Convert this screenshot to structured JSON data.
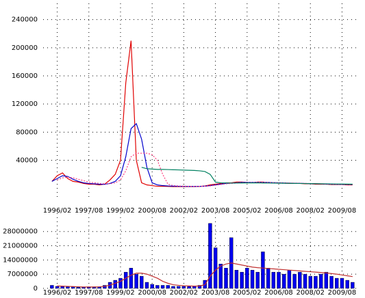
{
  "chart_data": [
    {
      "type": "line",
      "x": [
        "1995/11",
        "1996/02",
        "1996/05",
        "1996/08",
        "1996/11",
        "1997/02",
        "1997/05",
        "1997/08",
        "1997/11",
        "1998/02",
        "1998/05",
        "1998/08",
        "1998/11",
        "1999/02",
        "1999/05",
        "1999/08",
        "1999/11",
        "2000/02",
        "2000/05",
        "2000/08",
        "2000/11",
        "2001/02",
        "2001/05",
        "2001/08",
        "2001/11",
        "2002/02",
        "2002/05",
        "2002/08",
        "2002/11",
        "2003/02",
        "2003/05",
        "2003/08",
        "2003/11",
        "2004/02",
        "2004/05",
        "2004/08",
        "2004/11",
        "2005/02",
        "2005/05",
        "2005/08",
        "2005/11",
        "2006/02",
        "2006/05",
        "2006/08",
        "2006/11",
        "2007/02",
        "2007/05",
        "2007/08",
        "2007/11",
        "2008/02",
        "2008/05",
        "2008/08",
        "2008/11",
        "2009/02",
        "2009/05",
        "2009/08",
        "2009/11",
        "2010/02"
      ],
      "xlim": [
        "1995/06",
        "2010/04"
      ],
      "xticks": [
        "1996/02",
        "1997/08",
        "1999/02",
        "2000/08",
        "2002/02",
        "2003/08",
        "2005/02",
        "2006/08",
        "2008/02",
        "2009/08"
      ],
      "ylim": [
        -12000,
        263000
      ],
      "yticks": [
        40000,
        80000,
        120000,
        160000,
        200000,
        240000
      ],
      "grid": true,
      "series": [
        {
          "color": "#e00000",
          "values": [
            10000,
            18000,
            22000,
            14000,
            10000,
            9000,
            7000,
            6000,
            6000,
            5000,
            6000,
            12000,
            20000,
            40000,
            150000,
            210000,
            40000,
            8000,
            5000,
            4000,
            3000,
            3000,
            2800,
            2600,
            2500,
            2500,
            2500,
            2600,
            2800,
            3500,
            5000,
            6000,
            7000,
            8000,
            8000,
            9000,
            9000,
            8500,
            8000,
            9000,
            9000,
            8000,
            8000,
            7500,
            7500,
            7000,
            7000,
            7000,
            6500,
            6500,
            6000,
            6000,
            6000,
            5500,
            5500,
            5500,
            5000,
            5000
          ]
        },
        {
          "color": "#0000cc",
          "values": [
            10000,
            14000,
            18000,
            17000,
            13000,
            10000,
            8000,
            7000,
            6500,
            6000,
            5800,
            7000,
            10000,
            18000,
            45000,
            85000,
            92000,
            70000,
            30000,
            8000,
            5000,
            4000,
            3500,
            3200,
            3000,
            2900,
            2800,
            2800,
            2900,
            3200,
            4000,
            5000,
            6000,
            7000,
            7500,
            8000,
            8500,
            8500,
            8500,
            8500,
            8500,
            8500,
            8200,
            8000,
            7800,
            7500,
            7300,
            7200,
            7000,
            6800,
            6600,
            6400,
            6200,
            6000,
            5800,
            5700,
            5600,
            5500
          ]
        },
        {
          "color": "#ff4080",
          "values": [
            null,
            12000,
            15000,
            16000,
            15000,
            13000,
            11000,
            9000,
            8000,
            7000,
            6500,
            6500,
            8000,
            12000,
            25000,
            45000,
            50000,
            50000,
            50000,
            48000,
            40000,
            20000,
            6000,
            4000,
            3500,
            3200,
            3000,
            2900,
            2900,
            3000,
            3500,
            4500,
            5500,
            6500,
            7000,
            7500,
            8000,
            8200,
            8400,
            8500,
            8500,
            8500,
            8300,
            8100,
            7900,
            7700,
            7500,
            7300,
            7100,
            6900,
            6700,
            6500,
            6300,
            6100,
            5900,
            5800,
            5700,
            5600
          ]
        },
        {
          "color": "#008060",
          "values": [
            null,
            null,
            null,
            null,
            null,
            null,
            null,
            null,
            null,
            null,
            null,
            null,
            null,
            null,
            null,
            null,
            null,
            30000,
            28000,
            27500,
            27000,
            27000,
            26800,
            26500,
            26300,
            26000,
            25800,
            25500,
            25000,
            24000,
            20000,
            9000,
            8000,
            7800,
            7600,
            7600,
            7700,
            7800,
            7800,
            7800,
            7700,
            7600,
            7500,
            7400,
            7300,
            7200,
            7100,
            7000,
            6900,
            6800,
            6700,
            6600,
            6500,
            6400,
            6300,
            6200,
            6100,
            6000
          ]
        }
      ]
    },
    {
      "type": "bar",
      "x": [
        "1995/11",
        "1996/02",
        "1996/05",
        "1996/08",
        "1996/11",
        "1997/02",
        "1997/05",
        "1997/08",
        "1997/11",
        "1998/02",
        "1998/05",
        "1998/08",
        "1998/11",
        "1999/02",
        "1999/05",
        "1999/08",
        "1999/11",
        "2000/02",
        "2000/05",
        "2000/08",
        "2000/11",
        "2001/02",
        "2001/05",
        "2001/08",
        "2001/11",
        "2002/02",
        "2002/05",
        "2002/08",
        "2002/11",
        "2003/02",
        "2003/05",
        "2003/08",
        "2003/11",
        "2004/02",
        "2004/05",
        "2004/08",
        "2004/11",
        "2005/02",
        "2005/05",
        "2005/08",
        "2005/11",
        "2006/02",
        "2006/05",
        "2006/08",
        "2006/11",
        "2007/02",
        "2007/05",
        "2007/08",
        "2007/11",
        "2008/02",
        "2008/05",
        "2008/08",
        "2008/11",
        "2009/02",
        "2009/05",
        "2009/08",
        "2009/11",
        "2010/02"
      ],
      "xlim": [
        "1995/06",
        "2010/04"
      ],
      "xticks": [
        "1996/02",
        "1997/08",
        "1999/02",
        "2000/08",
        "2002/02",
        "2003/08",
        "2005/02",
        "2006/08",
        "2008/02",
        "2009/08"
      ],
      "ylim": [
        -700000,
        37000000
      ],
      "yticks": [
        0,
        7000000,
        14000000,
        21000000,
        28000000
      ],
      "grid": true,
      "color": "#0000ee",
      "values": [
        1500000,
        1000000,
        1000000,
        800000,
        800000,
        600000,
        600000,
        800000,
        800000,
        800000,
        1500000,
        3000000,
        4000000,
        5000000,
        8000000,
        10000000,
        7000000,
        6000000,
        3000000,
        2000000,
        1500000,
        1500000,
        1500000,
        1000000,
        1000000,
        1000000,
        1000000,
        1200000,
        1500000,
        4000000,
        32000000,
        20000000,
        12000000,
        10000000,
        25000000,
        9000000,
        8000000,
        10000000,
        9000000,
        8000000,
        18000000,
        10000000,
        8000000,
        8000000,
        7000000,
        9000000,
        7000000,
        8000000,
        7000000,
        6000000,
        6000000,
        7000000,
        8000000,
        6000000,
        5000000,
        5000000,
        4000000,
        3000000
      ],
      "series": [
        {
          "color": "#c03030",
          "values": [
            null,
            1200000,
            1100000,
            1000000,
            900000,
            800000,
            700000,
            700000,
            700000,
            800000,
            1000000,
            1600000,
            2500000,
            3500000,
            5000000,
            6500000,
            7500000,
            7500000,
            7000000,
            6000000,
            5000000,
            3500000,
            2500000,
            1800000,
            1500000,
            1300000,
            1200000,
            1100000,
            1200000,
            1800000,
            6000000,
            9000000,
            11000000,
            12000000,
            12500000,
            12000000,
            11500000,
            11000000,
            10500000,
            10200000,
            10000000,
            9800000,
            9600000,
            9400000,
            9200000,
            9000000,
            8800000,
            8600000,
            8400000,
            8200000,
            8000000,
            7800000,
            7600000,
            7300000,
            7000000,
            6600000,
            6200000,
            5800000
          ]
        }
      ]
    }
  ]
}
